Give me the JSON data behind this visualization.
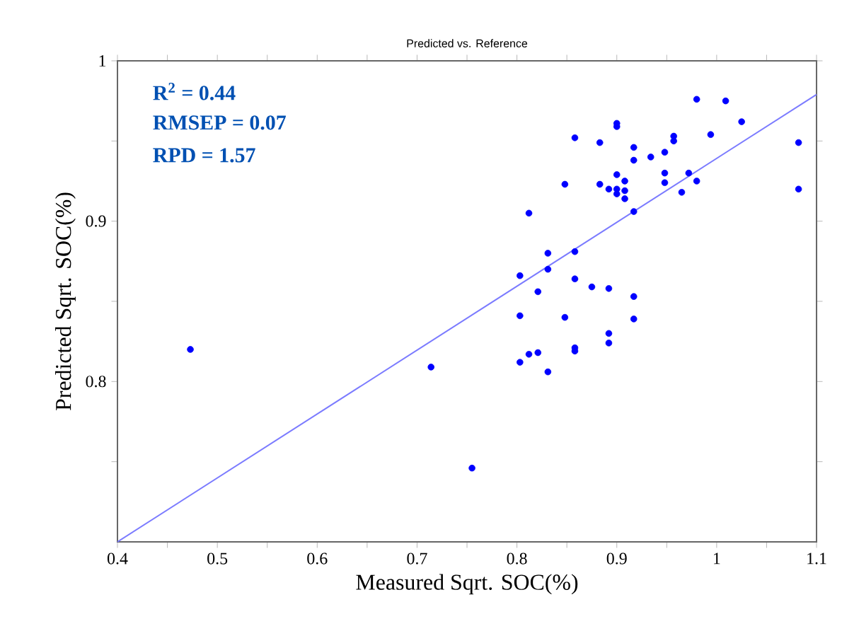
{
  "chart_data": {
    "type": "scatter",
    "title": "Predicted vs. Reference",
    "xlabel": "Measured Sqrt. SOC(%)",
    "ylabel": "Predicted Sqrt. SOC(%)",
    "annotations": [
      "R$^{2}$ = 0.44",
      "RMSEP = 0.07",
      "RPD = 1.57"
    ],
    "xlim": [
      0.4,
      1.1
    ],
    "ylim": [
      0.7,
      1.0
    ],
    "xticks": [
      0.4,
      {
        "value": 0.45,
        "label": null
      },
      0.5,
      {
        "value": 0.55,
        "label": null
      },
      0.6,
      {
        "value": 0.65,
        "label": null
      },
      0.7,
      {
        "value": 0.75,
        "label": null
      },
      0.8,
      {
        "value": 0.85,
        "label": null
      },
      0.9,
      {
        "value": 0.95,
        "label": null
      },
      1,
      {
        "value": 1.05,
        "label": null
      },
      1.1
    ],
    "yticks": [
      {
        "value": 0.75,
        "label": null
      },
      0.8,
      {
        "value": 0.85,
        "label": null
      },
      0.9,
      {
        "value": 0.95,
        "label": null
      },
      1
    ],
    "grid": false,
    "series": [
      {
        "color": "#0000ff",
        "marker": "circle",
        "x": [
          0.98,
          1.009,
          1.025,
          0.994,
          1.082,
          1.082,
          0.9,
          0.9,
          0.858,
          0.883,
          0.917,
          0.917,
          0.934,
          0.948,
          0.957,
          0.957,
          0.948,
          0.948,
          0.972,
          0.98,
          0.965,
          0.848,
          0.883,
          0.892,
          0.9,
          0.9,
          0.9,
          0.908,
          0.908,
          0.908,
          0.917,
          0.812,
          0.831,
          0.858,
          0.803,
          0.831,
          0.821,
          0.858,
          0.875,
          0.892,
          0.917,
          0.917,
          0.803,
          0.848,
          0.892,
          0.892,
          0.858,
          0.858,
          0.812,
          0.821,
          0.803,
          0.831,
          0.755,
          0.473,
          0.714
        ],
        "values": [
          0.976,
          0.975,
          0.962,
          0.954,
          0.949,
          0.92,
          0.961,
          0.959,
          0.952,
          0.949,
          0.946,
          0.938,
          0.94,
          0.943,
          0.953,
          0.95,
          0.93,
          0.924,
          0.93,
          0.925,
          0.918,
          0.923,
          0.923,
          0.92,
          0.929,
          0.92,
          0.917,
          0.925,
          0.919,
          0.914,
          0.906,
          0.905,
          0.88,
          0.881,
          0.866,
          0.87,
          0.856,
          0.864,
          0.859,
          0.858,
          0.853,
          0.839,
          0.841,
          0.84,
          0.83,
          0.824,
          0.821,
          0.819,
          0.817,
          0.818,
          0.812,
          0.806,
          0.746,
          0.82,
          0.809
        ]
      },
      {
        "type": "line",
        "marker": "none",
        "color": "#7b7bff",
        "x": [
          0.4,
          1.1
        ],
        "values": [
          0.7,
          0.979
        ]
      }
    ]
  }
}
